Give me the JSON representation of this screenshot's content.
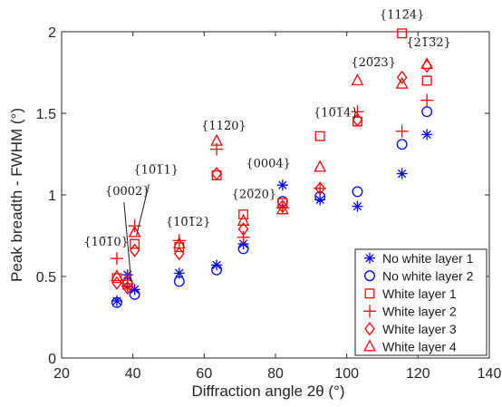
{
  "chart_data": {
    "type": "scatter",
    "title": "",
    "xlabel": "Diffraction angle 2θ (°)",
    "ylabel": "Peak breadth - FWHM (°)",
    "xlim": [
      20,
      140
    ],
    "ylim": [
      0,
      2
    ],
    "xticks": [
      20,
      40,
      60,
      80,
      100,
      120,
      140
    ],
    "yticks": [
      0,
      0.5,
      1,
      1.5,
      2
    ],
    "ytick_labels": [
      "0",
      "0.5",
      "1",
      "1.5",
      "2"
    ],
    "grid": false,
    "legend_position": "bottom-right",
    "series": [
      {
        "name": "No white layer 1",
        "marker": "asterisk",
        "color": "#0000ff",
        "points": [
          [
            35.5,
            0.35
          ],
          [
            38.5,
            0.51
          ],
          [
            40.5,
            0.42
          ],
          [
            53.0,
            0.52
          ],
          [
            63.5,
            0.57
          ],
          [
            71.0,
            0.7
          ],
          [
            82.0,
            1.06
          ],
          [
            92.5,
            0.97
          ],
          [
            103.0,
            0.93
          ],
          [
            115.5,
            1.13
          ],
          [
            122.5,
            1.37
          ]
        ]
      },
      {
        "name": "No white layer 2",
        "marker": "circle",
        "color": "#0000ff",
        "points": [
          [
            35.5,
            0.34
          ],
          [
            38.5,
            0.46
          ],
          [
            40.5,
            0.39
          ],
          [
            53.0,
            0.47
          ],
          [
            63.5,
            0.54
          ],
          [
            71.0,
            0.67
          ],
          [
            82.0,
            0.96
          ],
          [
            92.5,
            0.99
          ],
          [
            103.0,
            1.02
          ],
          [
            115.5,
            1.31
          ],
          [
            122.5,
            1.51
          ]
        ]
      },
      {
        "name": "White layer 1",
        "marker": "square",
        "color": "#ff0000",
        "points": [
          [
            35.5,
            0.49
          ],
          [
            38.5,
            0.45
          ],
          [
            40.5,
            0.7
          ],
          [
            53.0,
            0.68
          ],
          [
            63.5,
            1.12
          ],
          [
            71.0,
            0.88
          ],
          [
            82.0,
            0.95
          ],
          [
            92.5,
            1.36
          ],
          [
            103.0,
            1.45
          ],
          [
            115.5,
            1.99
          ],
          [
            122.5,
            1.7
          ]
        ]
      },
      {
        "name": "White layer 2",
        "marker": "plus",
        "color": "#ff0000",
        "points": [
          [
            35.5,
            0.61
          ],
          [
            38.5,
            0.44
          ],
          [
            40.5,
            0.81
          ],
          [
            53.0,
            0.72
          ],
          [
            63.5,
            1.28
          ],
          [
            71.0,
            0.74
          ],
          [
            82.0,
            0.92
          ],
          [
            92.5,
            1.04
          ],
          [
            103.0,
            1.51
          ],
          [
            115.5,
            1.39
          ],
          [
            122.5,
            1.58
          ]
        ]
      },
      {
        "name": "White layer 3",
        "marker": "diamond",
        "color": "#ff0000",
        "points": [
          [
            35.5,
            0.46
          ],
          [
            38.5,
            0.43
          ],
          [
            40.5,
            0.66
          ],
          [
            53.0,
            0.64
          ],
          [
            63.5,
            1.13
          ],
          [
            71.0,
            0.79
          ],
          [
            82.0,
            0.93
          ],
          [
            92.5,
            1.04
          ],
          [
            103.0,
            1.46
          ],
          [
            115.5,
            1.72
          ],
          [
            122.5,
            1.79
          ]
        ]
      },
      {
        "name": "White layer 4",
        "marker": "triangle",
        "color": "#ff0000",
        "points": [
          [
            35.5,
            0.5
          ],
          [
            38.5,
            0.48
          ],
          [
            40.5,
            0.77
          ],
          [
            53.0,
            0.7
          ],
          [
            63.5,
            1.33
          ],
          [
            71.0,
            0.84
          ],
          [
            82.0,
            0.91
          ],
          [
            92.5,
            1.17
          ],
          [
            103.0,
            1.7
          ],
          [
            115.5,
            1.68
          ],
          [
            122.5,
            1.8
          ]
        ]
      }
    ],
    "annotations": [
      {
        "text": "{10̅1̅0}",
        "x": 32.5,
        "y": 0.69
      },
      {
        "text": "{0002}",
        "x": 38.5,
        "y": 1.0
      },
      {
        "text": "{10̅1̅1}",
        "x": 46.5,
        "y": 1.13
      },
      {
        "text": "{10̅1̅2}",
        "x": 55.5,
        "y": 0.81
      },
      {
        "text": "{112̅0}",
        "x": 65.5,
        "y": 1.4
      },
      {
        "text": "{20̅2̅0}",
        "x": 74.0,
        "y": 0.98
      },
      {
        "text": "{0004}",
        "x": 78.0,
        "y": 1.17
      },
      {
        "text": "{10̅1̅4}",
        "x": 97.0,
        "y": 1.48
      },
      {
        "text": "{20̅2̅3}",
        "x": 107.5,
        "y": 1.79
      },
      {
        "text": "{112̅4}",
        "x": 115.5,
        "y": 2.08
      },
      {
        "text": "{21̅3̅2}",
        "x": 123.0,
        "y": 1.91
      }
    ],
    "pointers": [
      {
        "from": [
          37.5,
          0.955
        ],
        "to": [
          39.5,
          0.47
        ]
      },
      {
        "from": [
          44.5,
          1.065
        ],
        "to": [
          41.0,
          0.75
        ]
      }
    ]
  }
}
